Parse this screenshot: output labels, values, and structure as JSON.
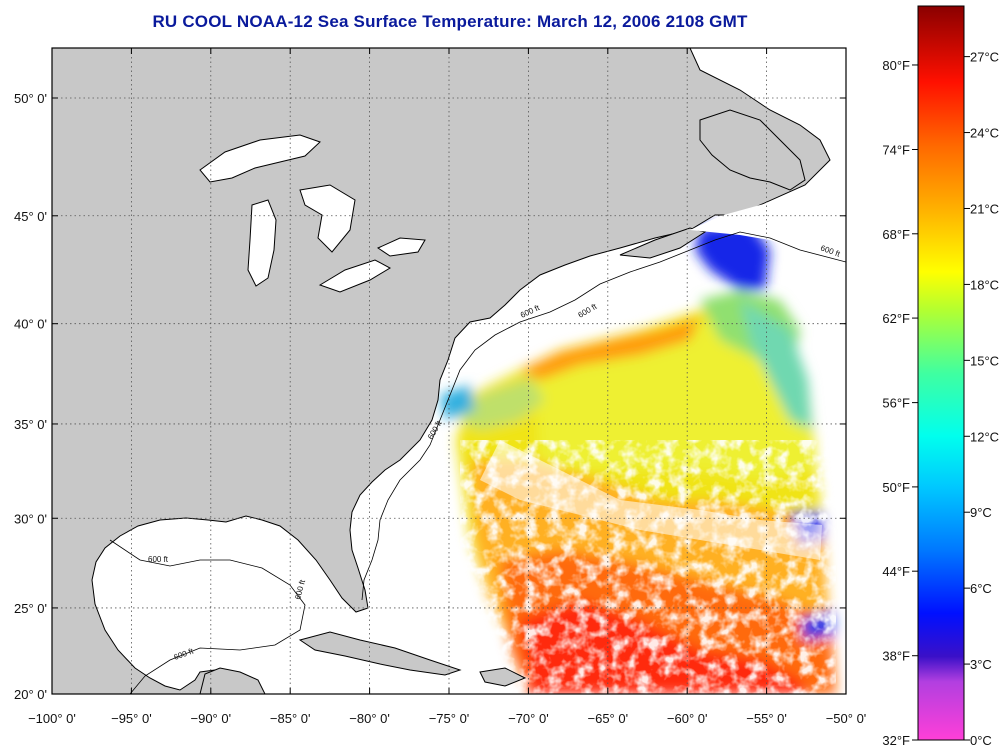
{
  "title": "RU COOL  NOAA-12  Sea Surface Temperature:  March 12, 2006 2108 GMT",
  "map": {
    "lon_range": [
      -100,
      -50
    ],
    "lat_range": [
      20,
      52
    ],
    "lon_ticks": [
      {
        "value": -100,
        "label": "−100° 0'"
      },
      {
        "value": -95,
        "label": "−95° 0'"
      },
      {
        "value": -90,
        "label": "−90° 0'"
      },
      {
        "value": -85,
        "label": "−85° 0'"
      },
      {
        "value": -80,
        "label": "−80° 0'"
      },
      {
        "value": -75,
        "label": "−75° 0'"
      },
      {
        "value": -70,
        "label": "−70° 0'"
      },
      {
        "value": -65,
        "label": "−65° 0'"
      },
      {
        "value": -60,
        "label": "−60° 0'"
      },
      {
        "value": -55,
        "label": "−55° 0'"
      },
      {
        "value": -50,
        "label": "−50° 0'"
      }
    ],
    "lat_ticks": [
      {
        "value": 20,
        "label": "20° 0'"
      },
      {
        "value": 25,
        "label": "25° 0'"
      },
      {
        "value": 30,
        "label": "30° 0'"
      },
      {
        "value": 35,
        "label": "35° 0'"
      },
      {
        "value": 40,
        "label": "40° 0'"
      },
      {
        "value": 45,
        "label": "45° 0'"
      },
      {
        "value": 50,
        "label": "50° 0'"
      }
    ],
    "isobath_label": "600 ft",
    "colors": {
      "land": "#c8c8c8",
      "cloud": "#ffffff",
      "coast": "#000000",
      "grid": "#555555"
    }
  },
  "colorbar": {
    "range_c": [
      0,
      29
    ],
    "fahrenheit_ticks": [
      {
        "value_c": 0,
        "label": "32°F"
      },
      {
        "value_c": 3.33,
        "label": "38°F"
      },
      {
        "value_c": 6.67,
        "label": "44°F"
      },
      {
        "value_c": 10,
        "label": "50°F"
      },
      {
        "value_c": 13.33,
        "label": "56°F"
      },
      {
        "value_c": 16.67,
        "label": "62°F"
      },
      {
        "value_c": 20,
        "label": "68°F"
      },
      {
        "value_c": 23.33,
        "label": "74°F"
      },
      {
        "value_c": 26.67,
        "label": "80°F"
      }
    ],
    "celsius_ticks": [
      {
        "value_c": 0,
        "label": "0°C"
      },
      {
        "value_c": 3,
        "label": "3°C"
      },
      {
        "value_c": 6,
        "label": "6°C"
      },
      {
        "value_c": 9,
        "label": "9°C"
      },
      {
        "value_c": 12,
        "label": "12°C"
      },
      {
        "value_c": 15,
        "label": "15°C"
      },
      {
        "value_c": 18,
        "label": "18°C"
      },
      {
        "value_c": 21,
        "label": "21°C"
      },
      {
        "value_c": 24,
        "label": "24°C"
      },
      {
        "value_c": 27,
        "label": "27°C"
      }
    ],
    "stops": [
      {
        "c": 0,
        "color": "#ff3fd8"
      },
      {
        "c": 2.3,
        "color": "#b23fe0"
      },
      {
        "c": 3.3,
        "color": "#3a10c8"
      },
      {
        "c": 5,
        "color": "#0010ff"
      },
      {
        "c": 7.5,
        "color": "#0078ff"
      },
      {
        "c": 10,
        "color": "#00c8ff"
      },
      {
        "c": 12,
        "color": "#00ffee"
      },
      {
        "c": 14.5,
        "color": "#40ffa0"
      },
      {
        "c": 17,
        "color": "#b4ff30"
      },
      {
        "c": 18.5,
        "color": "#ffff00"
      },
      {
        "c": 21,
        "color": "#ffb000"
      },
      {
        "c": 23.5,
        "color": "#ff6800"
      },
      {
        "c": 26,
        "color": "#ff1000"
      },
      {
        "c": 29,
        "color": "#8a0000"
      }
    ]
  }
}
